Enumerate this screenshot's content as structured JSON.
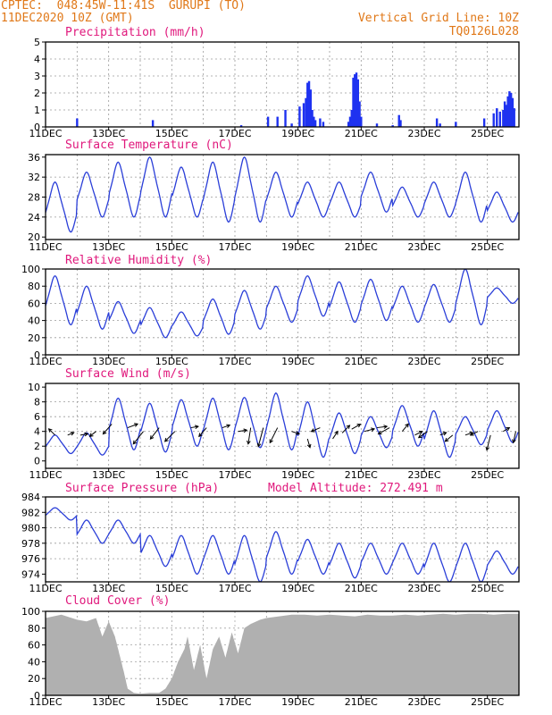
{
  "header": {
    "left_line1": "CPTEC:  048:45W-11:41S  GURUPI (TO)",
    "left_line2": "11DEC2020 10Z (GMT)",
    "right_line1": "Vertical Grid Line: 10Z",
    "right_line2": "TQ0126L028"
  },
  "colors": {
    "header": "#e07818",
    "title": "#e0187c",
    "line": "#2a3ed8",
    "precip_bar": "#1e32f0",
    "cloud_fill": "#a8a8a8",
    "grid": "#9a9a9a"
  },
  "x_tick_labels": [
    "11DEC",
    "13DEC",
    "15DEC",
    "17DEC",
    "19DEC",
    "21DEC",
    "23DEC",
    "25DEC"
  ],
  "chart_data": [
    {
      "type": "bar",
      "title": "Precipitation (mm/h)",
      "ylim": [
        0,
        5
      ],
      "yticks": [
        "0",
        "1",
        "2",
        "3",
        "4",
        "5"
      ],
      "grid": true,
      "points": [
        [
          1.0,
          0.5
        ],
        [
          3.4,
          0.4
        ],
        [
          6.2,
          0.1
        ],
        [
          7.05,
          0.6
        ],
        [
          7.35,
          0.6
        ],
        [
          7.6,
          1.0
        ],
        [
          7.8,
          0.2
        ],
        [
          8.05,
          1.2
        ],
        [
          8.18,
          1.4
        ],
        [
          8.25,
          1.7
        ],
        [
          8.3,
          2.6
        ],
        [
          8.35,
          2.7
        ],
        [
          8.4,
          2.2
        ],
        [
          8.45,
          1.0
        ],
        [
          8.5,
          0.6
        ],
        [
          8.55,
          0.4
        ],
        [
          8.7,
          0.5
        ],
        [
          8.8,
          0.3
        ],
        [
          9.6,
          0.3
        ],
        [
          9.65,
          0.6
        ],
        [
          9.7,
          1.0
        ],
        [
          9.75,
          2.9
        ],
        [
          9.8,
          3.1
        ],
        [
          9.85,
          3.2
        ],
        [
          9.9,
          2.8
        ],
        [
          9.95,
          1.5
        ],
        [
          10.0,
          0.6
        ],
        [
          10.5,
          0.2
        ],
        [
          11.0,
          0.1
        ],
        [
          11.2,
          0.7
        ],
        [
          11.25,
          0.4
        ],
        [
          12.4,
          0.5
        ],
        [
          12.5,
          0.2
        ],
        [
          13.0,
          0.3
        ],
        [
          13.9,
          0.5
        ],
        [
          14.2,
          0.8
        ],
        [
          14.3,
          1.1
        ],
        [
          14.4,
          0.9
        ],
        [
          14.5,
          1.0
        ],
        [
          14.55,
          1.5
        ],
        [
          14.6,
          1.3
        ],
        [
          14.65,
          1.8
        ],
        [
          14.7,
          2.1
        ],
        [
          14.75,
          2.0
        ],
        [
          14.8,
          1.7
        ],
        [
          14.85,
          1.1
        ]
      ]
    },
    {
      "type": "line",
      "title": "Surface Temperature (nC)",
      "ylim": [
        19.5,
        36.5
      ],
      "yticks": [
        "20",
        "24",
        "28",
        "32",
        "36"
      ],
      "grid": true,
      "diurnal": {
        "min": [
          21,
          24,
          24,
          24,
          24,
          23,
          23,
          24,
          24,
          24,
          25,
          24,
          24,
          23,
          23
        ],
        "max": [
          31,
          33,
          35,
          36,
          34,
          35,
          36,
          33,
          31,
          31,
          33,
          30,
          31,
          33,
          29
        ]
      }
    },
    {
      "type": "line",
      "title": "Relative Humidity (%)",
      "ylim": [
        0,
        100
      ],
      "yticks": [
        "0",
        "20",
        "40",
        "60",
        "80",
        "100"
      ],
      "grid": true,
      "diurnal": {
        "min": [
          35,
          30,
          25,
          20,
          22,
          24,
          30,
          38,
          45,
          38,
          40,
          38,
          38,
          35,
          60
        ],
        "max": [
          92,
          80,
          62,
          55,
          50,
          65,
          75,
          80,
          92,
          85,
          88,
          80,
          82,
          100,
          78
        ]
      }
    },
    {
      "type": "line",
      "title": "Surface Wind (m/s)",
      "ylim": [
        -1,
        10.5
      ],
      "yticks": [
        "0",
        "2",
        "4",
        "6",
        "8",
        "10"
      ],
      "grid": true,
      "diurnal": {
        "min": [
          1.0,
          0.8,
          1.5,
          1.2,
          2.0,
          1.5,
          1.8,
          1.5,
          0.5,
          1.0,
          1.8,
          2.0,
          0.5,
          2.2,
          2.5
        ],
        "max": [
          3.5,
          3.8,
          8.5,
          7.8,
          8.3,
          8.5,
          8.6,
          9.2,
          8.0,
          6.5,
          6.0,
          7.5,
          6.8,
          6.0,
          6.8
        ]
      },
      "wind_arrows": [
        [
          0.3,
          3.5,
          -0.5,
          0.5
        ],
        [
          0.7,
          3.5,
          0.5,
          0.2
        ],
        [
          1.1,
          3.5,
          0.6,
          0.1
        ],
        [
          1.6,
          4.0,
          -0.5,
          -0.4
        ],
        [
          2.1,
          5.0,
          -0.7,
          -0.8
        ],
        [
          2.6,
          4.5,
          0.8,
          0.3
        ],
        [
          3.1,
          4.0,
          -0.8,
          -1.0
        ],
        [
          3.6,
          4.5,
          -0.7,
          -0.9
        ],
        [
          4.1,
          4.0,
          -0.8,
          -0.8
        ],
        [
          4.6,
          4.5,
          0.6,
          0.1
        ],
        [
          5.1,
          4.5,
          -0.6,
          -0.7
        ],
        [
          5.6,
          4.5,
          0.6,
          0.2
        ],
        [
          6.1,
          4.0,
          0.7,
          0.1
        ],
        [
          6.5,
          4.5,
          -0.2,
          -1.3
        ],
        [
          6.9,
          4.5,
          -0.4,
          -1.5
        ],
        [
          7.35,
          4.5,
          -0.6,
          -1.2
        ],
        [
          7.8,
          4.0,
          0.6,
          -0.2
        ],
        [
          8.3,
          3.0,
          0.2,
          -0.7
        ],
        [
          8.7,
          4.5,
          -0.7,
          -0.3
        ],
        [
          9.1,
          3.0,
          0.4,
          0.6
        ],
        [
          9.4,
          3.8,
          0.6,
          0.6
        ],
        [
          9.7,
          4.3,
          0.7,
          0.4
        ],
        [
          10.1,
          4.0,
          0.8,
          0.2
        ],
        [
          10.5,
          4.5,
          0.8,
          0.1
        ],
        [
          10.9,
          4.5,
          -0.9,
          -0.5
        ],
        [
          11.3,
          4.0,
          0.5,
          0.6
        ],
        [
          11.7,
          3.5,
          0.6,
          0.3
        ],
        [
          12.1,
          4.0,
          -0.7,
          -0.5
        ],
        [
          12.5,
          3.5,
          0.5,
          0.2
        ],
        [
          12.9,
          3.5,
          -0.6,
          -0.5
        ],
        [
          13.3,
          3.5,
          0.6,
          0.2
        ],
        [
          13.7,
          4.0,
          -0.6,
          -0.3
        ],
        [
          14.1,
          3.5,
          -0.3,
          -1.2
        ],
        [
          14.5,
          4.0,
          0.5,
          0.3
        ],
        [
          14.9,
          4.0,
          -0.2,
          -0.9
        ]
      ]
    },
    {
      "type": "line",
      "title": "Surface Pressure (hPa)",
      "annotation": "Model Altitude: 272.491 m",
      "ylim": [
        973,
        984
      ],
      "yticks": [
        "974",
        "976",
        "978",
        "980",
        "982",
        "984"
      ],
      "grid": true,
      "diurnal": {
        "min": [
          981,
          978,
          978,
          975,
          974,
          974,
          973,
          974,
          974,
          973.5,
          974,
          974,
          973,
          973,
          974
        ],
        "max": [
          982.6,
          981,
          981,
          979,
          979,
          979,
          979,
          979.5,
          978.5,
          978,
          978,
          978,
          978,
          978,
          977
        ]
      }
    },
    {
      "type": "area",
      "title": "Cloud Cover (%)",
      "ylim": [
        0,
        100
      ],
      "yticks": [
        "0",
        "20",
        "40",
        "60",
        "80",
        "100"
      ],
      "grid": true,
      "points": [
        [
          0.0,
          92
        ],
        [
          0.5,
          96
        ],
        [
          1.0,
          90
        ],
        [
          1.3,
          88
        ],
        [
          1.6,
          92
        ],
        [
          1.8,
          70
        ],
        [
          2.0,
          88
        ],
        [
          2.2,
          70
        ],
        [
          2.4,
          40
        ],
        [
          2.5,
          25
        ],
        [
          2.6,
          8
        ],
        [
          2.8,
          3
        ],
        [
          3.0,
          2
        ],
        [
          3.3,
          3
        ],
        [
          3.6,
          3
        ],
        [
          3.8,
          8
        ],
        [
          4.0,
          20
        ],
        [
          4.2,
          40
        ],
        [
          4.4,
          55
        ],
        [
          4.5,
          70
        ],
        [
          4.7,
          30
        ],
        [
          4.9,
          60
        ],
        [
          5.1,
          20
        ],
        [
          5.3,
          55
        ],
        [
          5.5,
          70
        ],
        [
          5.7,
          45
        ],
        [
          5.9,
          75
        ],
        [
          6.1,
          50
        ],
        [
          6.3,
          80
        ],
        [
          6.5,
          85
        ],
        [
          6.8,
          90
        ],
        [
          7.0,
          92
        ],
        [
          7.4,
          94
        ],
        [
          7.8,
          96
        ],
        [
          8.2,
          96
        ],
        [
          8.6,
          95
        ],
        [
          9.0,
          96
        ],
        [
          9.4,
          95
        ],
        [
          9.8,
          94
        ],
        [
          10.2,
          96
        ],
        [
          10.6,
          95
        ],
        [
          11.0,
          95
        ],
        [
          11.4,
          96
        ],
        [
          11.8,
          95
        ],
        [
          12.2,
          96
        ],
        [
          12.6,
          97
        ],
        [
          13.0,
          96
        ],
        [
          13.4,
          97
        ],
        [
          13.8,
          97
        ],
        [
          14.2,
          96
        ],
        [
          14.6,
          97
        ],
        [
          15.0,
          97
        ]
      ]
    }
  ]
}
